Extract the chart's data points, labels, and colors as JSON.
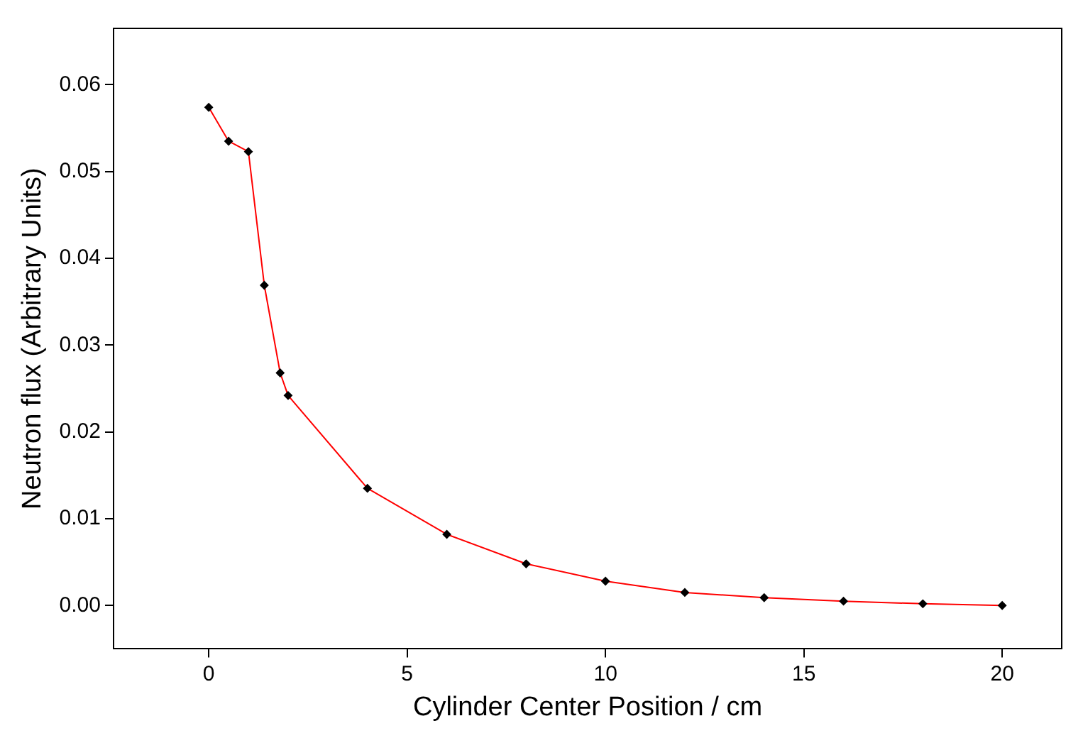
{
  "chart_data": {
    "type": "line",
    "xlabel": "Cylinder Center Position / cm",
    "ylabel": "Neutron flux (Arbitrary Units)",
    "x": [
      0,
      0.5,
      1,
      1.4,
      1.8,
      2,
      4,
      6,
      8,
      10,
      12,
      14,
      16,
      18,
      20
    ],
    "series": [
      {
        "color": "#ff0000",
        "values": [
          0.0574,
          0.0535,
          0.0523,
          0.0369,
          0.0268,
          0.0242,
          0.0135,
          0.0082,
          0.0048,
          0.0028,
          0.0015,
          0.0009,
          0.0005,
          0.0002,
          0.0
        ]
      }
    ],
    "xlim": [
      -2.4,
      21.5
    ],
    "xticks": [
      0,
      5,
      10,
      15,
      20
    ],
    "ylim": [
      -0.005,
      0.0665
    ],
    "yticks": [
      {
        "value": 0,
        "label": "0.00"
      },
      {
        "value": 0.01,
        "label": "0.01"
      },
      {
        "value": 0.02,
        "label": "0.02"
      },
      {
        "value": 0.03,
        "label": "0.03"
      },
      {
        "value": 0.04,
        "label": "0.04"
      },
      {
        "value": 0.05,
        "label": "0.05"
      },
      {
        "value": 0.06,
        "label": "0.06"
      }
    ],
    "grid": false,
    "legend": false,
    "marker": "diamond",
    "line_style": "solid"
  }
}
